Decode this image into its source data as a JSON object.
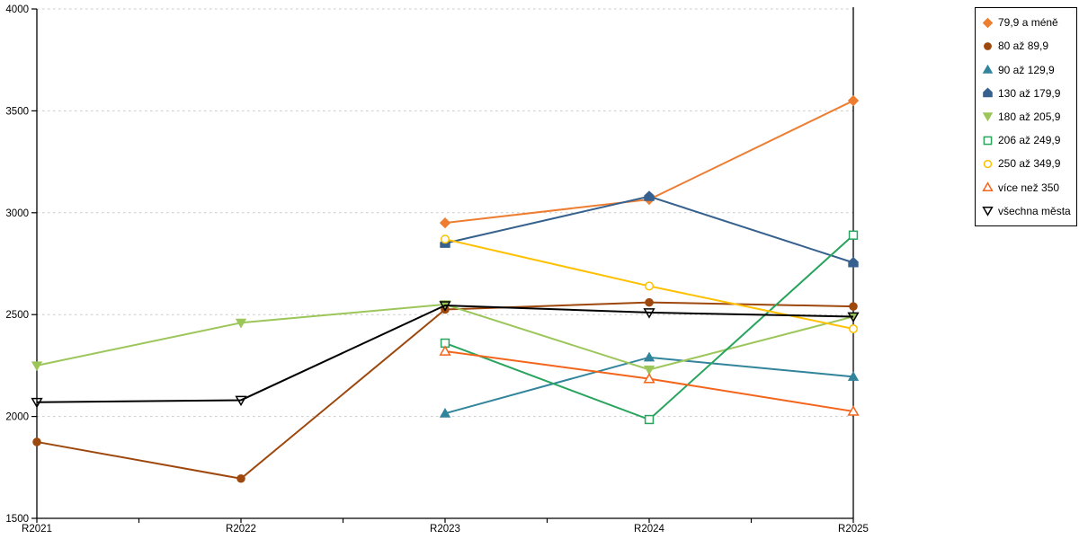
{
  "chart_data": {
    "type": "line",
    "title": "",
    "xlabel": "",
    "ylabel": "",
    "x_categories": [
      "R2021",
      "R2022",
      "R2023",
      "R2024",
      "R2025"
    ],
    "y_ticks": [
      "1500",
      "2000",
      "2500",
      "3000",
      "3500",
      "4000"
    ],
    "ylim": [
      1500,
      4000
    ],
    "grid": "horizontal dotted gridlines at 2000-4000",
    "legend_position": "top-right, boxed",
    "series": [
      {
        "name": "79,9 a méně",
        "color": "#ED7D31",
        "marker": "diamond",
        "style": "solid",
        "values": [
          null,
          null,
          2950,
          3065,
          3550
        ]
      },
      {
        "name": "80 až 89,9",
        "color": "#9E480E",
        "marker": "circle",
        "style": "solid",
        "values": [
          1875,
          1695,
          2525,
          2560,
          2540
        ]
      },
      {
        "name": "90 až 129,9",
        "color": "#31849B",
        "marker": "triangle-up",
        "style": "solid",
        "values": [
          null,
          null,
          2015,
          2290,
          2195
        ]
      },
      {
        "name": "130 až 179,9",
        "color": "#36618E",
        "marker": "pentagon",
        "style": "solid",
        "values": [
          null,
          null,
          2850,
          3080,
          2755
        ]
      },
      {
        "name": "180 až 205,9",
        "color": "#9CC65A",
        "marker": "triangle-down",
        "style": "solid",
        "values": [
          2250,
          2460,
          2550,
          2230,
          2490
        ]
      },
      {
        "name": "206 až 249,9",
        "color": "#28A45D",
        "marker": "square",
        "style": "open",
        "values": [
          null,
          null,
          2360,
          1985,
          2890
        ]
      },
      {
        "name": "250 až 349,9",
        "color": "#FFC000",
        "marker": "circle",
        "style": "open",
        "values": [
          null,
          null,
          2870,
          2640,
          2430
        ]
      },
      {
        "name": "více než 350",
        "color": "#F4651C",
        "marker": "triangle-up",
        "style": "open",
        "values": [
          null,
          null,
          2320,
          2185,
          2025
        ]
      },
      {
        "name": "všechna města",
        "color": "#000000",
        "marker": "triangle-down",
        "style": "open",
        "values": [
          2070,
          2080,
          2545,
          2510,
          2490
        ]
      }
    ]
  },
  "colors": {
    "background": "#FFFFFF",
    "axis": "#000000",
    "gridline": "#C9C9C9",
    "legend_border": "#000000",
    "text": "#000000"
  }
}
